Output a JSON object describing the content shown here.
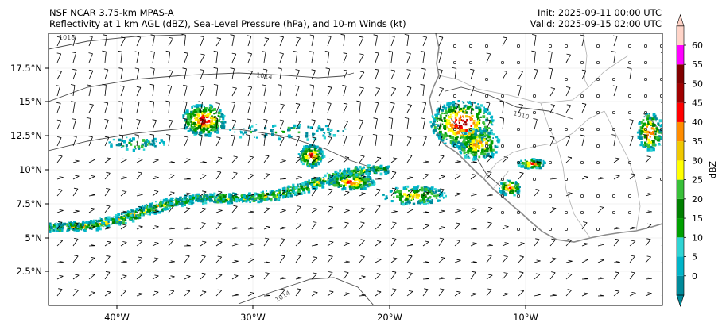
{
  "header": {
    "model": "NSF NCAR 3.75-km MPAS-A",
    "fields": "Reflectivity at 1 km AGL (dBZ), Sea-Level Pressure (hPa), and 10-m Winds (kt)",
    "init": "Init: 2025-09-11 00:00 UTC",
    "valid": "Valid: 2025-09-15 02:00 UTC"
  },
  "map": {
    "lat_ticks": [
      "17.5°N",
      "15°N",
      "12.5°N",
      "10°N",
      "7.5°N",
      "5°N",
      "2.5°N"
    ],
    "lon_ticks": [
      "40°W",
      "30°W",
      "20°W",
      "10°W"
    ],
    "isobar_labels": [
      "1018",
      "1014",
      "1010",
      "1014"
    ],
    "land_color": "#ffffff",
    "coast_color": "#808080"
  },
  "colorbar": {
    "label": "dBZ",
    "ticks": [
      "0",
      "5",
      "10",
      "15",
      "20",
      "25",
      "30",
      "35",
      "40",
      "45",
      "50",
      "55",
      "60"
    ],
    "colors": [
      "#008a9a",
      "#00b4c8",
      "#2fd4d4",
      "#00a000",
      "#008000",
      "#38c038",
      "#ffff00",
      "#f0c800",
      "#ff8c00",
      "#ff0000",
      "#a00000",
      "#800000",
      "#ff00ff",
      "#ffd4c8"
    ]
  }
}
